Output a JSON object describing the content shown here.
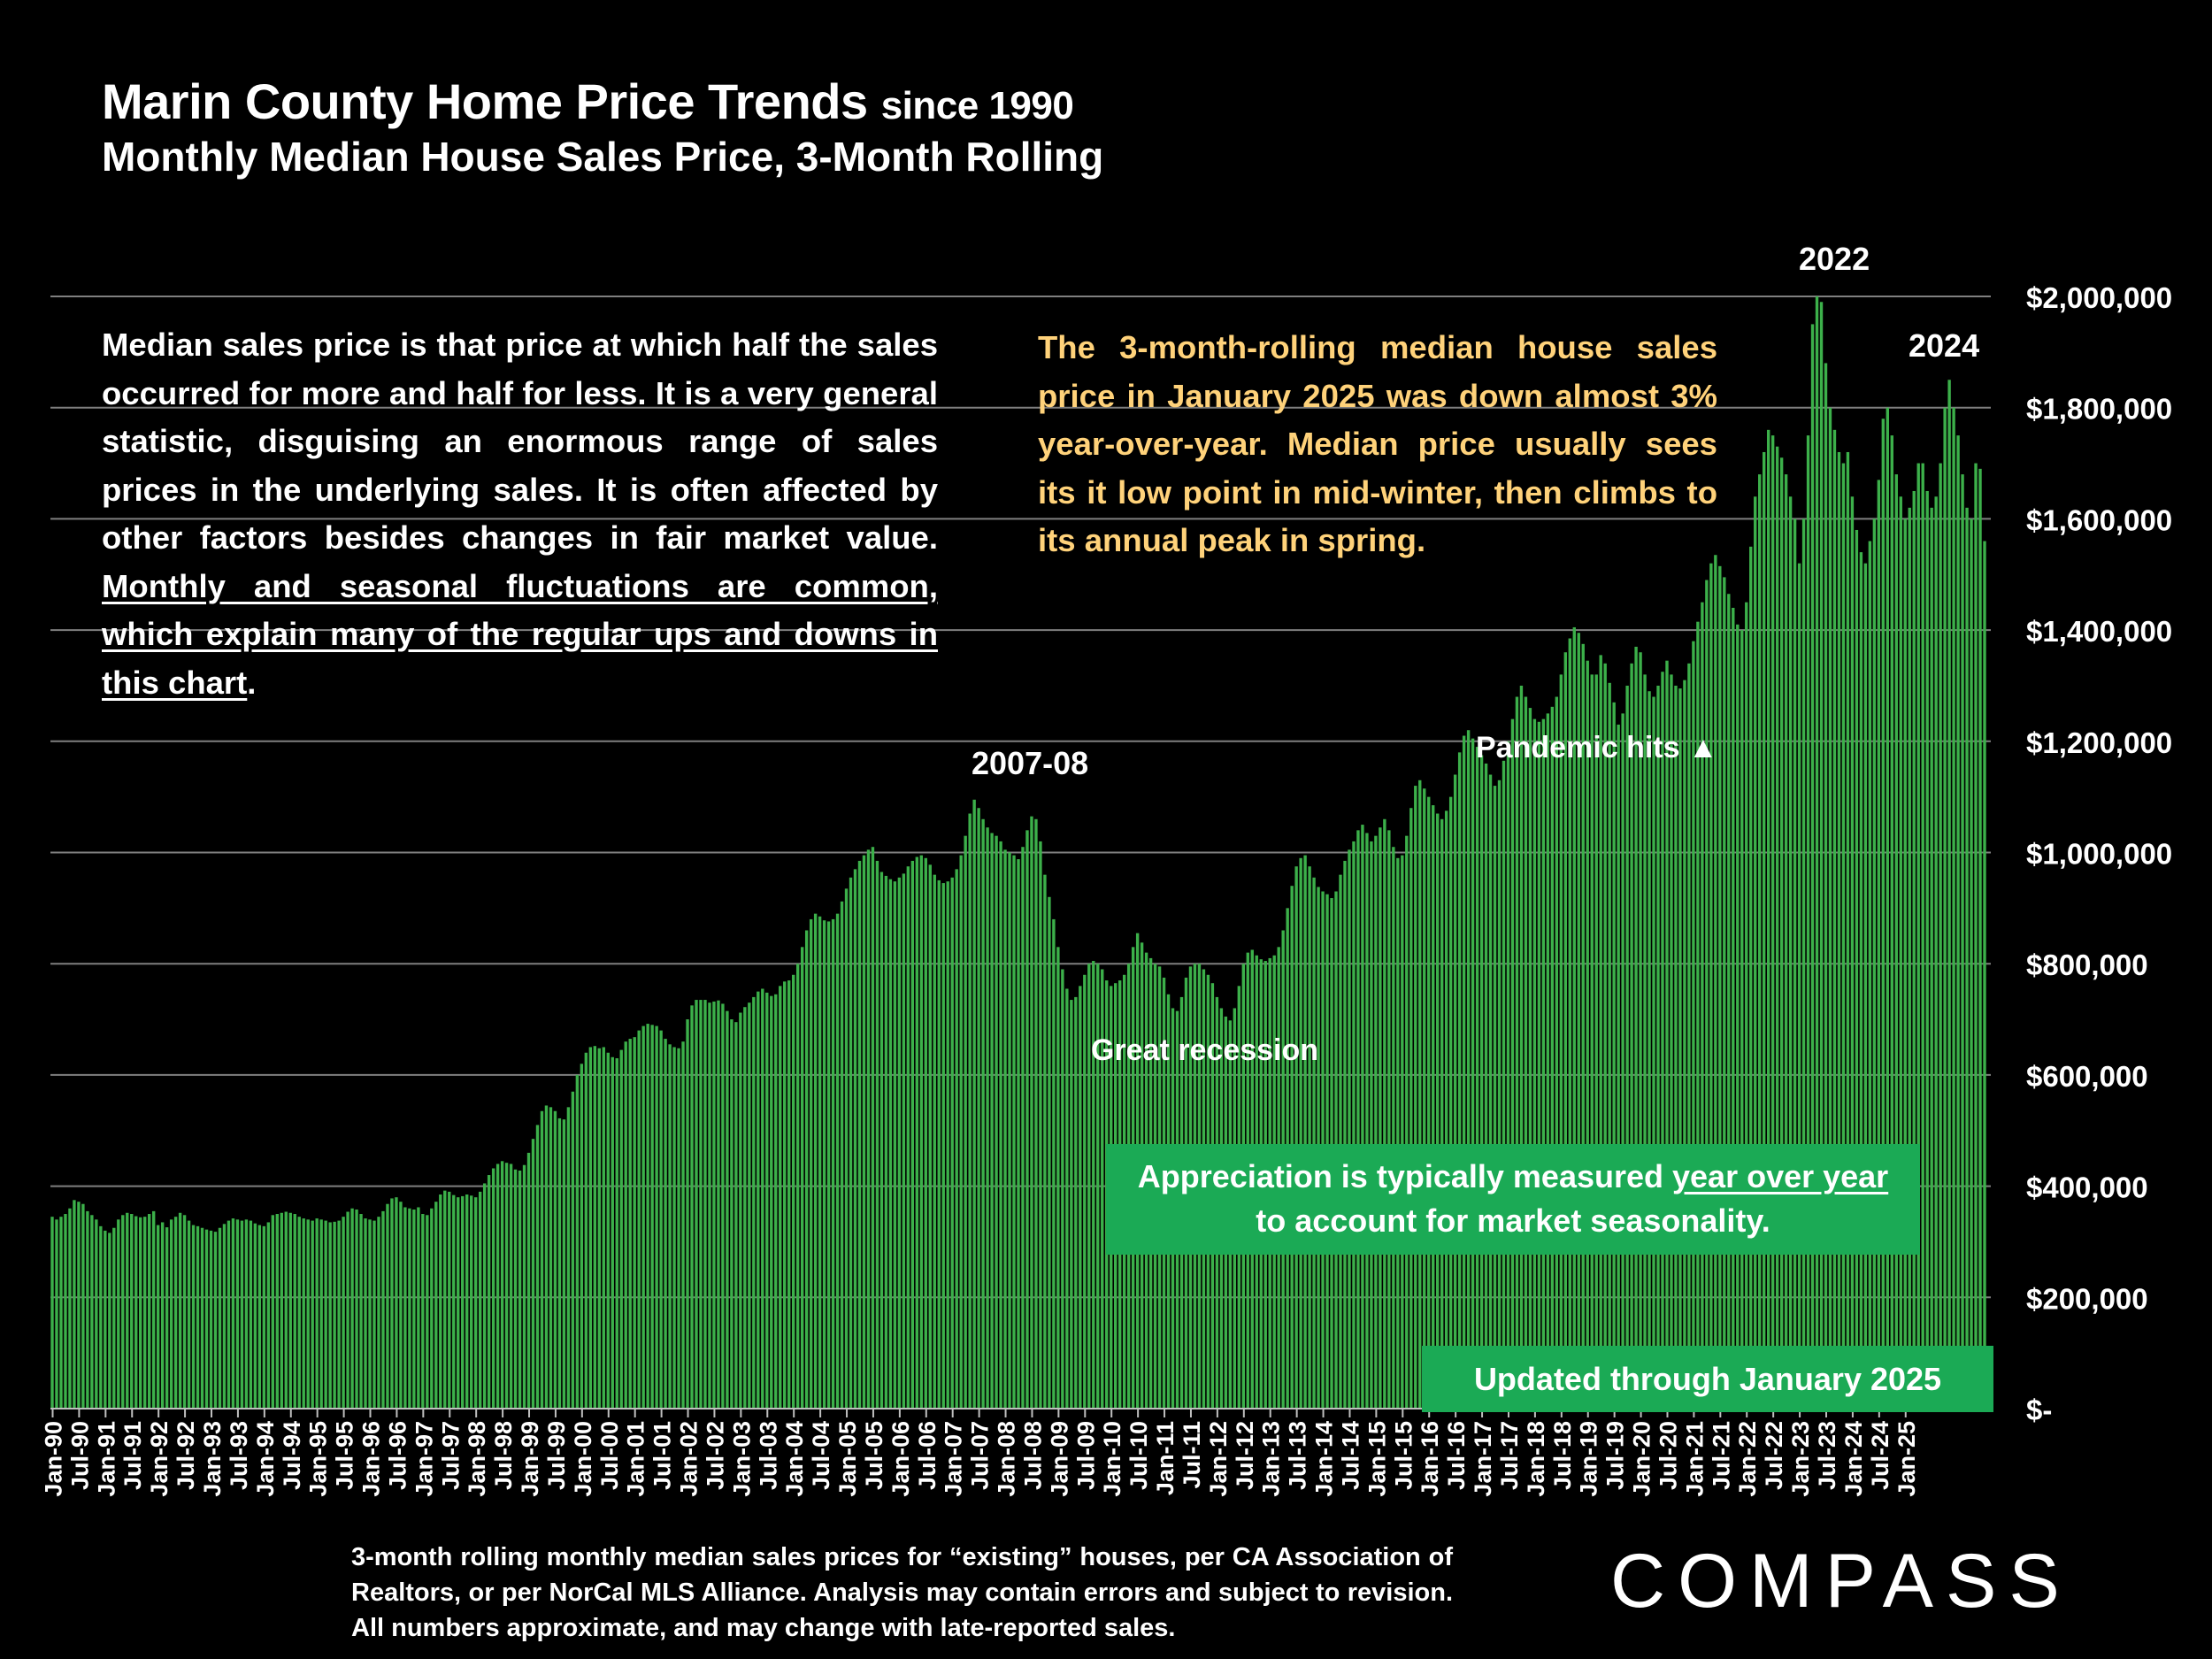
{
  "title": {
    "main": "Marin County Home Price Trends",
    "suffix": "since 1990"
  },
  "subtitle": "Monthly Median House Sales Price, 3-Month Rolling",
  "description": {
    "plain": "Median sales price is that price at which half the sales occurred for more and half for less. It is a very general statistic, disguising an enormous range of sales prices in the underlying sales. It is often affected by other factors besides changes in fair market value. ",
    "underlined": "Monthly and seasonal fluctuations are common, which explain many of the regular ups and downs in this chart",
    "end": "."
  },
  "note": "The 3-month-rolling median house sales price in January 2025 was down almost 3% year-over-year. Median price usually sees its it low point in mid-winter, then climbs to its annual peak in spring.",
  "annotations": {
    "y2022": "2022",
    "y2024": "2024",
    "y0708": "2007-08",
    "great_recession": "Great recession",
    "pandemic": "Pandemic hits",
    "pandemic_marker": "▲"
  },
  "appreciation": {
    "before": "Appreciation is typically measured ",
    "underlined": "year over year",
    "after": "to account for market seasonality."
  },
  "updated": "Updated through January 2025",
  "footnote": "3-month rolling monthly median sales prices for “existing” houses, per CA Association of Realtors, or per NorCal MLS Alliance. Analysis may contain errors and subject to revision. All numbers approximate, and may change with late-reported sales.",
  "logo": "COMPASS",
  "colors": {
    "bar": "#3CB04A",
    "bar_edge": "#86D68E",
    "grid": "#7f7f7f",
    "note": "#FFD27A",
    "box": "#1BAA55"
  },
  "chart_data": {
    "type": "bar",
    "title": "Marin County Home Price Trends since 1990",
    "subtitle": "Monthly Median House Sales Price, 3-Month Rolling",
    "ylabel": "",
    "xlabel": "",
    "ylim": [
      0,
      2000000
    ],
    "grid": true,
    "y_tick_values": [
      0,
      200000,
      400000,
      600000,
      800000,
      1000000,
      1200000,
      1400000,
      1600000,
      1800000,
      2000000
    ],
    "y_tick_labels": [
      "$-",
      "$200,000",
      "$400,000",
      "$600,000",
      "$800,000",
      "$1,000,000",
      "$1,200,000",
      "$1,400,000",
      "$1,600,000",
      "$1,800,000",
      "$2,000,000"
    ],
    "x_tick_labels": [
      "Jan-90",
      "Jul-90",
      "Jan-91",
      "Jul-91",
      "Jan-92",
      "Jul-92",
      "Jan-93",
      "Jul-93",
      "Jan-94",
      "Jul-94",
      "Jan-95",
      "Jul-95",
      "Jan-96",
      "Jul-96",
      "Jan-97",
      "Jul-97",
      "Jan-98",
      "Jul-98",
      "Jan-99",
      "Jul-99",
      "Jan-00",
      "Jul-00",
      "Jan-01",
      "Jul-01",
      "Jan-02",
      "Jul-02",
      "Jan-03",
      "Jul-03",
      "Jan-04",
      "Jul-04",
      "Jan-05",
      "Jul-05",
      "Jan-06",
      "Jul-06",
      "Jan-07",
      "Jul-07",
      "Jan-08",
      "Jul-08",
      "Jan-09",
      "Jul-09",
      "Jan-10",
      "Jul-10",
      "Jan-11",
      "Jul-11",
      "Jan-12",
      "Jul-12",
      "Jan-13",
      "Jul-13",
      "Jan-14",
      "Jul-14",
      "Jan-15",
      "Jul-15",
      "Jan-16",
      "Jul-16",
      "Jan-17",
      "Jul-17",
      "Jan-18",
      "Jul-18",
      "Jan-19",
      "Jul-19",
      "Jan-20",
      "Jul-20",
      "Jan-21",
      "Jul-21",
      "Jan-22",
      "Jul-22",
      "Jan-23",
      "Jul-23",
      "Jan-24",
      "Jul-24",
      "Jan-25"
    ],
    "series": [
      {
        "name": "3-Month Rolling Median Sales Price",
        "start": "Jan-90",
        "frequency": "monthly",
        "values": [
          345000,
          340000,
          345000,
          350000,
          360000,
          375000,
          372000,
          368000,
          355000,
          348000,
          340000,
          328000,
          320000,
          316000,
          325000,
          340000,
          348000,
          352000,
          350000,
          346000,
          344000,
          345000,
          350000,
          355000,
          330000,
          335000,
          326000,
          340000,
          345000,
          352000,
          348000,
          338000,
          330000,
          328000,
          325000,
          322000,
          320000,
          318000,
          325000,
          332000,
          338000,
          342000,
          340000,
          338000,
          340000,
          338000,
          333000,
          330000,
          328000,
          335000,
          348000,
          350000,
          352000,
          354000,
          352000,
          350000,
          345000,
          342000,
          340000,
          338000,
          342000,
          340000,
          338000,
          335000,
          336000,
          338000,
          345000,
          354000,
          360000,
          358000,
          350000,
          342000,
          340000,
          338000,
          345000,
          355000,
          368000,
          378000,
          380000,
          372000,
          362000,
          360000,
          358000,
          362000,
          350000,
          348000,
          360000,
          372000,
          385000,
          392000,
          390000,
          384000,
          380000,
          382000,
          385000,
          383000,
          380000,
          390000,
          405000,
          420000,
          432000,
          440000,
          445000,
          442000,
          440000,
          430000,
          428000,
          438000,
          460000,
          485000,
          510000,
          535000,
          545000,
          542000,
          535000,
          522000,
          520000,
          542000,
          570000,
          600000,
          620000,
          640000,
          650000,
          652000,
          648000,
          650000,
          640000,
          632000,
          630000,
          645000,
          660000,
          665000,
          668000,
          680000,
          688000,
          692000,
          690000,
          688000,
          680000,
          665000,
          655000,
          650000,
          648000,
          660000,
          700000,
          725000,
          735000,
          735000,
          735000,
          730000,
          732000,
          734000,
          728000,
          715000,
          700000,
          695000,
          712000,
          722000,
          730000,
          740000,
          750000,
          755000,
          748000,
          742000,
          745000,
          760000,
          768000,
          770000,
          780000,
          800000,
          830000,
          860000,
          880000,
          890000,
          885000,
          878000,
          876000,
          880000,
          890000,
          912000,
          935000,
          955000,
          970000,
          985000,
          995000,
          1005000,
          1010000,
          985000,
          965000,
          958000,
          952000,
          948000,
          955000,
          962000,
          975000,
          985000,
          992000,
          995000,
          990000,
          978000,
          960000,
          950000,
          945000,
          948000,
          955000,
          970000,
          995000,
          1030000,
          1070000,
          1095000,
          1080000,
          1060000,
          1045000,
          1035000,
          1030000,
          1020000,
          1005000,
          1000000,
          995000,
          988000,
          1010000,
          1040000,
          1065000,
          1060000,
          1020000,
          960000,
          920000,
          880000,
          830000,
          790000,
          755000,
          735000,
          740000,
          760000,
          780000,
          800000,
          805000,
          800000,
          790000,
          770000,
          760000,
          765000,
          770000,
          780000,
          800000,
          830000,
          855000,
          838000,
          820000,
          810000,
          800000,
          795000,
          775000,
          745000,
          720000,
          715000,
          740000,
          775000,
          795000,
          800000,
          800000,
          790000,
          780000,
          765000,
          740000,
          720000,
          705000,
          698000,
          720000,
          760000,
          800000,
          820000,
          825000,
          815000,
          808000,
          805000,
          810000,
          815000,
          830000,
          860000,
          900000,
          940000,
          975000,
          990000,
          995000,
          975000,
          955000,
          938000,
          930000,
          925000,
          918000,
          930000,
          960000,
          985000,
          1005000,
          1020000,
          1040000,
          1050000,
          1035000,
          1020000,
          1030000,
          1045000,
          1060000,
          1040000,
          1010000,
          990000,
          995000,
          1030000,
          1080000,
          1120000,
          1130000,
          1115000,
          1100000,
          1085000,
          1070000,
          1060000,
          1075000,
          1100000,
          1140000,
          1180000,
          1210000,
          1220000,
          1205000,
          1190000,
          1175000,
          1160000,
          1140000,
          1120000,
          1130000,
          1165000,
          1200000,
          1240000,
          1280000,
          1300000,
          1280000,
          1260000,
          1240000,
          1235000,
          1240000,
          1250000,
          1262000,
          1280000,
          1320000,
          1360000,
          1385000,
          1405000,
          1395000,
          1375000,
          1345000,
          1320000,
          1320000,
          1355000,
          1340000,
          1305000,
          1270000,
          1230000,
          1250000,
          1300000,
          1340000,
          1370000,
          1360000,
          1320000,
          1290000,
          1280000,
          1300000,
          1325000,
          1345000,
          1320000,
          1300000,
          1295000,
          1310000,
          1340000,
          1380000,
          1415000,
          1450000,
          1490000,
          1520000,
          1535000,
          1515000,
          1495000,
          1465000,
          1440000,
          1410000,
          1400000,
          1450000,
          1550000,
          1640000,
          1680000,
          1720000,
          1760000,
          1750000,
          1730000,
          1710000,
          1680000,
          1640000,
          1600000,
          1520000,
          1600000,
          1750000,
          1950000,
          2000000,
          1990000,
          1880000,
          1800000,
          1760000,
          1720000,
          1700000,
          1720000,
          1640000,
          1580000,
          1540000,
          1520000,
          1560000,
          1600000,
          1670000,
          1780000,
          1800000,
          1750000,
          1680000,
          1640000,
          1600000,
          1620000,
          1650000,
          1700000,
          1700000,
          1650000,
          1620000,
          1640000,
          1700000,
          1800000,
          1850000,
          1800000,
          1750000,
          1680000,
          1620000,
          1600000,
          1700000,
          1690000,
          1560000
        ]
      }
    ]
  }
}
